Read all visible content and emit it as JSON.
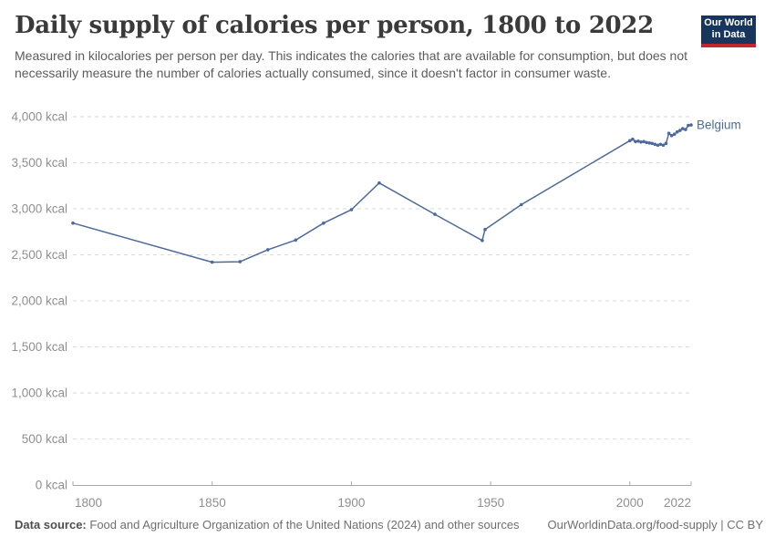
{
  "header": {
    "title": "Daily supply of calories per person, 1800 to 2022",
    "subtitle": "Measured in kilocalories per person per day. This indicates the calories that are available for consumption, but does not necessarily measure the number of calories actually consumed, since it doesn't factor in consumer waste.",
    "logo": {
      "line1": "Our World",
      "line2": "in Data"
    }
  },
  "chart_data": {
    "type": "line",
    "title": "Daily supply of calories per person, 1800 to 2022",
    "xlabel": "",
    "ylabel": "",
    "x_domain": [
      1800,
      2022
    ],
    "y_domain": [
      0,
      4000
    ],
    "grid": true,
    "legend_position": "end-of-line",
    "y_ticks": [
      {
        "value": 0,
        "label": "0 kcal"
      },
      {
        "value": 500,
        "label": "500 kcal"
      },
      {
        "value": 1000,
        "label": "1,000 kcal"
      },
      {
        "value": 1500,
        "label": "1,500 kcal"
      },
      {
        "value": 2000,
        "label": "2,000 kcal"
      },
      {
        "value": 2500,
        "label": "2,500 kcal"
      },
      {
        "value": 3000,
        "label": "3,000 kcal"
      },
      {
        "value": 3500,
        "label": "3,500 kcal"
      },
      {
        "value": 4000,
        "label": "4,000 kcal"
      }
    ],
    "x_ticks": [
      {
        "value": 1800,
        "label": "1800",
        "anchor": "start"
      },
      {
        "value": 1850,
        "label": "1850",
        "anchor": "middle"
      },
      {
        "value": 1900,
        "label": "1900",
        "anchor": "middle"
      },
      {
        "value": 1950,
        "label": "1950",
        "anchor": "middle"
      },
      {
        "value": 2000,
        "label": "2000",
        "anchor": "middle"
      },
      {
        "value": 2022,
        "label": "2022",
        "anchor": "end"
      }
    ],
    "series": [
      {
        "name": "Belgium",
        "color": "#4C6A9C",
        "points": [
          [
            1800,
            2845
          ],
          [
            1850,
            2420
          ],
          [
            1860,
            2425
          ],
          [
            1870,
            2555
          ],
          [
            1880,
            2660
          ],
          [
            1890,
            2845
          ],
          [
            1900,
            2990
          ],
          [
            1910,
            3280
          ],
          [
            1930,
            2940
          ],
          [
            1947,
            2655
          ],
          [
            1948,
            2775
          ],
          [
            1961,
            3045
          ],
          [
            2000,
            3740
          ],
          [
            2001,
            3755
          ],
          [
            2002,
            3730
          ],
          [
            2003,
            3735
          ],
          [
            2004,
            3725
          ],
          [
            2005,
            3730
          ],
          [
            2006,
            3720
          ],
          [
            2007,
            3715
          ],
          [
            2008,
            3710
          ],
          [
            2009,
            3700
          ],
          [
            2010,
            3690
          ],
          [
            2011,
            3700
          ],
          [
            2012,
            3690
          ],
          [
            2013,
            3710
          ],
          [
            2014,
            3820
          ],
          [
            2015,
            3795
          ],
          [
            2016,
            3810
          ],
          [
            2017,
            3835
          ],
          [
            2018,
            3850
          ],
          [
            2019,
            3870
          ],
          [
            2020,
            3860
          ],
          [
            2021,
            3905
          ],
          [
            2022,
            3910
          ]
        ]
      }
    ]
  },
  "footer": {
    "source_label": "Data source:",
    "source_text": "Food and Agriculture Organization of the United Nations (2024) and other sources",
    "credit": "OurWorldinData.org/food-supply | CC BY"
  },
  "colors": {
    "accent": "#4C6A9C",
    "gridline": "#dadada",
    "axis": "#a8a8a8",
    "tick_label": "#8f8f8f",
    "logo_navy": "#18355e",
    "logo_red": "#c2262e"
  }
}
